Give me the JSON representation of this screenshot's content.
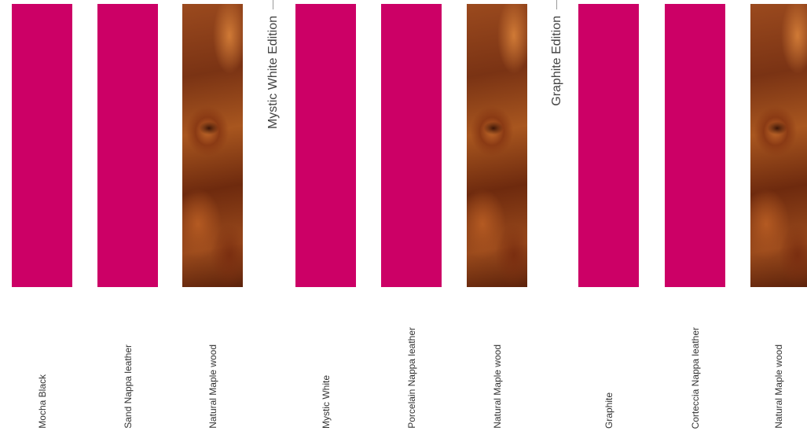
{
  "editions": [
    {
      "title": "Mystic White Edition"
    },
    {
      "title": "Graphite Edition"
    }
  ],
  "swatches": [
    {
      "label": "Mocha Black",
      "kind": "solid",
      "color": "#cc0066"
    },
    {
      "label": "Sand Nappa leather",
      "kind": "solid",
      "color": "#cc0066"
    },
    {
      "label": "Natural Maple wood",
      "kind": "wood"
    },
    {
      "label": "Mystic White",
      "kind": "solid",
      "color": "#cc0066"
    },
    {
      "label": "Porcelain Nappa leather",
      "kind": "solid",
      "color": "#cc0066"
    },
    {
      "label": "Natural Maple wood",
      "kind": "wood"
    },
    {
      "label": "Graphite",
      "kind": "solid",
      "color": "#cc0066"
    },
    {
      "label": "Corteccia Nappa leather",
      "kind": "solid",
      "color": "#cc0066"
    },
    {
      "label": "Natural Maple wood",
      "kind": "wood"
    }
  ]
}
